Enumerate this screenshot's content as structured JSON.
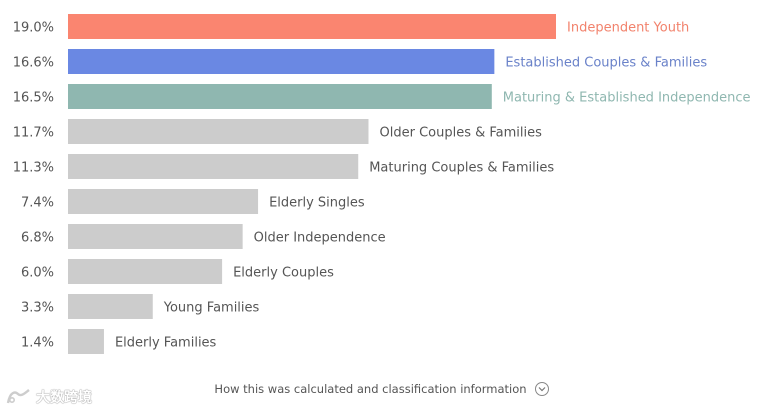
{
  "chart_data": {
    "type": "bar",
    "orientation": "horizontal",
    "categories": [
      "Independent Youth",
      "Established Couples & Families",
      "Maturing & Established Independence",
      "Older Couples & Families",
      "Maturing Couples & Families",
      "Elderly Singles",
      "Older Independence",
      "Elderly Couples",
      "Young Families",
      "Elderly Families"
    ],
    "values": [
      19.0,
      16.6,
      16.5,
      11.7,
      11.3,
      7.4,
      6.8,
      6.0,
      3.3,
      1.4
    ],
    "value_labels": [
      "19.0%",
      "16.6%",
      "16.5%",
      "11.7%",
      "11.3%",
      "7.4%",
      "6.8%",
      "6.0%",
      "3.3%",
      "1.4%"
    ],
    "xlim": [
      0,
      20
    ],
    "grid": false,
    "colors": {
      "highlight": [
        "#fa8570",
        "#6a88e3",
        "#8fb7b0"
      ],
      "highlight_text": [
        "#f2826c",
        "#6a82c9",
        "#8fb7b0"
      ],
      "default": "#cccccc",
      "default_text": "#555555"
    }
  },
  "footer": {
    "text": "How this was calculated and classification information",
    "icon": "chevron-down-icon"
  },
  "watermark": {
    "text": "大数跨境",
    "icon": "logo-icon"
  }
}
